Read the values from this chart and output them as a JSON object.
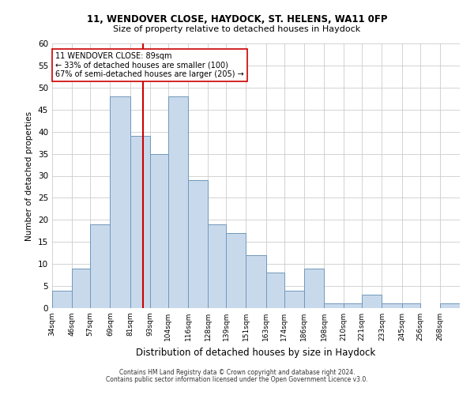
{
  "title1": "11, WENDOVER CLOSE, HAYDOCK, ST. HELENS, WA11 0FP",
  "title2": "Size of property relative to detached houses in Haydock",
  "xlabel": "Distribution of detached houses by size in Haydock",
  "ylabel": "Number of detached properties",
  "bin_labels": [
    "34sqm",
    "46sqm",
    "57sqm",
    "69sqm",
    "81sqm",
    "93sqm",
    "104sqm",
    "116sqm",
    "128sqm",
    "139sqm",
    "151sqm",
    "163sqm",
    "174sqm",
    "186sqm",
    "198sqm",
    "210sqm",
    "221sqm",
    "233sqm",
    "245sqm",
    "256sqm",
    "268sqm"
  ],
  "bin_edges": [
    34,
    46,
    57,
    69,
    81,
    93,
    104,
    116,
    128,
    139,
    151,
    163,
    174,
    186,
    198,
    210,
    221,
    233,
    245,
    256,
    268
  ],
  "bar_heights": [
    4,
    9,
    19,
    48,
    39,
    35,
    48,
    29,
    19,
    17,
    12,
    8,
    4,
    9,
    1,
    1,
    3,
    1,
    1,
    0,
    1
  ],
  "bar_color": "#c9d9ec",
  "bar_edge_color": "#7099bb",
  "vline_x": 89,
  "vline_color": "#cc0000",
  "ylim": [
    0,
    60
  ],
  "yticks": [
    0,
    5,
    10,
    15,
    20,
    25,
    30,
    35,
    40,
    45,
    50,
    55,
    60
  ],
  "annotation_title": "11 WENDOVER CLOSE: 89sqm",
  "annotation_line1": "← 33% of detached houses are smaller (100)",
  "annotation_line2": "67% of semi-detached houses are larger (205) →",
  "annotation_box_color": "#ffffff",
  "annotation_box_edge": "#cc0000",
  "footer1": "Contains HM Land Registry data © Crown copyright and database right 2024.",
  "footer2": "Contains public sector information licensed under the Open Government Licence v3.0.",
  "background_color": "#ffffff",
  "grid_color": "#cccccc"
}
